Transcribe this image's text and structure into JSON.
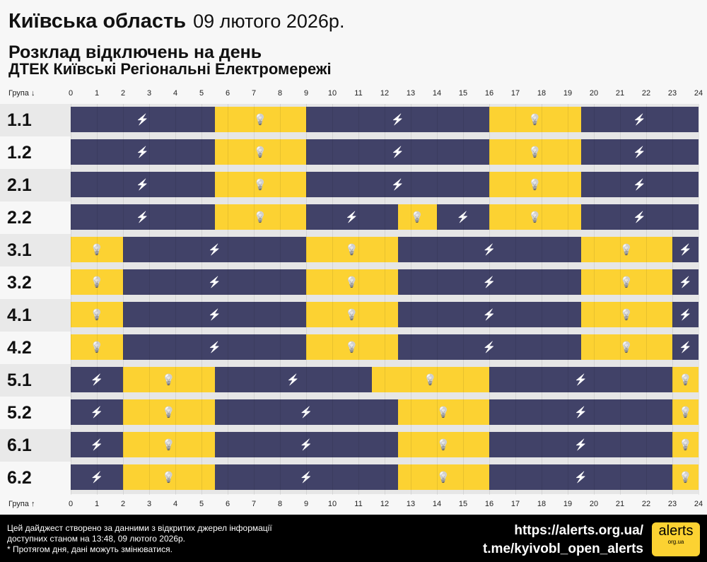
{
  "header": {
    "region": "Київська область",
    "date": "09 лютого 2026р.",
    "subtitle": "Розклад відключень на день",
    "company": "ДТЕК Київські Регіональні Електромережі"
  },
  "axis": {
    "top_label": "Група ↓",
    "bottom_label": "Група ↑",
    "hours": [
      "0",
      "1",
      "2",
      "3",
      "4",
      "5",
      "6",
      "7",
      "8",
      "9",
      "10",
      "11",
      "12",
      "13",
      "14",
      "15",
      "16",
      "17",
      "18",
      "19",
      "20",
      "21",
      "22",
      "23",
      "24"
    ]
  },
  "colors": {
    "off": "#414268",
    "on": "#fcd232"
  },
  "icons": {
    "off": "power-off-icon",
    "on": "light-bulb-icon"
  },
  "groups": [
    {
      "name": "1.1",
      "segments": [
        [
          "off",
          0,
          5.5
        ],
        [
          "on",
          5.5,
          9
        ],
        [
          "off",
          9,
          16
        ],
        [
          "on",
          16,
          19.5
        ],
        [
          "off",
          19.5,
          24
        ]
      ]
    },
    {
      "name": "1.2",
      "segments": [
        [
          "off",
          0,
          5.5
        ],
        [
          "on",
          5.5,
          9
        ],
        [
          "off",
          9,
          16
        ],
        [
          "on",
          16,
          19.5
        ],
        [
          "off",
          19.5,
          24
        ]
      ]
    },
    {
      "name": "2.1",
      "segments": [
        [
          "off",
          0,
          5.5
        ],
        [
          "on",
          5.5,
          9
        ],
        [
          "off",
          9,
          16
        ],
        [
          "on",
          16,
          19.5
        ],
        [
          "off",
          19.5,
          24
        ]
      ]
    },
    {
      "name": "2.2",
      "segments": [
        [
          "off",
          0,
          5.5
        ],
        [
          "on",
          5.5,
          9
        ],
        [
          "off",
          9,
          12.5
        ],
        [
          "on",
          12.5,
          14
        ],
        [
          "off",
          14,
          16
        ],
        [
          "on",
          16,
          19.5
        ],
        [
          "off",
          19.5,
          24
        ]
      ]
    },
    {
      "name": "3.1",
      "segments": [
        [
          "on",
          0,
          2
        ],
        [
          "off",
          2,
          9
        ],
        [
          "on",
          9,
          12.5
        ],
        [
          "off",
          12.5,
          19.5
        ],
        [
          "on",
          19.5,
          23
        ],
        [
          "off",
          23,
          24
        ]
      ]
    },
    {
      "name": "3.2",
      "segments": [
        [
          "on",
          0,
          2
        ],
        [
          "off",
          2,
          9
        ],
        [
          "on",
          9,
          12.5
        ],
        [
          "off",
          12.5,
          19.5
        ],
        [
          "on",
          19.5,
          23
        ],
        [
          "off",
          23,
          24
        ]
      ]
    },
    {
      "name": "4.1",
      "segments": [
        [
          "on",
          0,
          2
        ],
        [
          "off",
          2,
          9
        ],
        [
          "on",
          9,
          12.5
        ],
        [
          "off",
          12.5,
          19.5
        ],
        [
          "on",
          19.5,
          23
        ],
        [
          "off",
          23,
          24
        ]
      ]
    },
    {
      "name": "4.2",
      "segments": [
        [
          "on",
          0,
          2
        ],
        [
          "off",
          2,
          9
        ],
        [
          "on",
          9,
          12.5
        ],
        [
          "off",
          12.5,
          19.5
        ],
        [
          "on",
          19.5,
          23
        ],
        [
          "off",
          23,
          24
        ]
      ]
    },
    {
      "name": "5.1",
      "segments": [
        [
          "off",
          0,
          2
        ],
        [
          "on",
          2,
          5.5
        ],
        [
          "off",
          5.5,
          11.5
        ],
        [
          "on",
          11.5,
          16
        ],
        [
          "off",
          16,
          23
        ],
        [
          "on",
          23,
          24
        ]
      ]
    },
    {
      "name": "5.2",
      "segments": [
        [
          "off",
          0,
          2
        ],
        [
          "on",
          2,
          5.5
        ],
        [
          "off",
          5.5,
          12.5
        ],
        [
          "on",
          12.5,
          16
        ],
        [
          "off",
          16,
          23
        ],
        [
          "on",
          23,
          24
        ]
      ]
    },
    {
      "name": "6.1",
      "segments": [
        [
          "off",
          0,
          2
        ],
        [
          "on",
          2,
          5.5
        ],
        [
          "off",
          5.5,
          12.5
        ],
        [
          "on",
          12.5,
          16
        ],
        [
          "off",
          16,
          23
        ],
        [
          "on",
          23,
          24
        ]
      ]
    },
    {
      "name": "6.2",
      "segments": [
        [
          "off",
          0,
          2
        ],
        [
          "on",
          2,
          5.5
        ],
        [
          "off",
          5.5,
          12.5
        ],
        [
          "on",
          12.5,
          16
        ],
        [
          "off",
          16,
          23
        ],
        [
          "on",
          23,
          24
        ]
      ]
    }
  ],
  "footer": {
    "line1": "Цей дайджест створено за данними з відкритих джерел інформації",
    "line2": "доступних станом на 13:48, 09 лютого 2026р.",
    "line3": "* Протягом дня, дані можуть змінюватися.",
    "site": "https://alerts.org.ua/",
    "telegram": "t.me/kyivobl_open_alerts",
    "logo": "alerts",
    "logo_sub": "org.ua"
  }
}
